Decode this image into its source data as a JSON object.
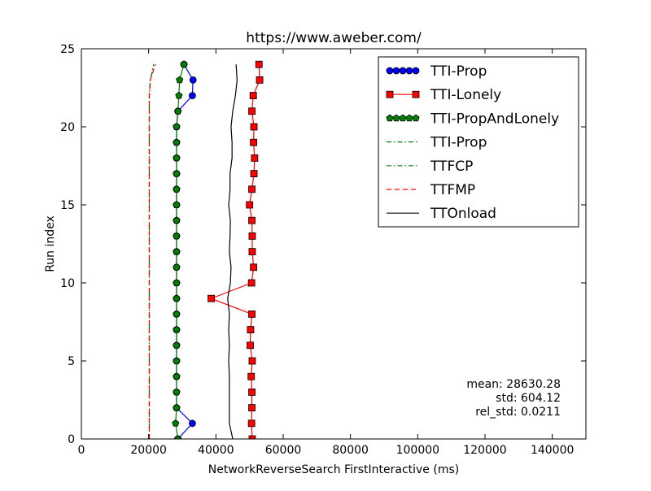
{
  "chart_data": {
    "type": "line",
    "title": "https://www.aweber.com/",
    "xlabel": "NetworkReverseSearch FirstInteractive (ms)",
    "ylabel": "Run index",
    "xlim": [
      0,
      150000
    ],
    "ylim": [
      0,
      25
    ],
    "x_ticks": [
      0,
      20000,
      40000,
      60000,
      80000,
      100000,
      120000,
      140000
    ],
    "y_ticks": [
      0,
      5,
      10,
      15,
      20,
      25
    ],
    "grid": false,
    "legend_position": "top-right",
    "annotation": {
      "lines": [
        "mean: 28630.28",
        "std: 604.12",
        "rel_std: 0.0211"
      ]
    },
    "series": [
      {
        "name": "TTI-Prop",
        "style": "solid-marker",
        "marker": "circle",
        "color": "#0000ff",
        "marker_fill": "#0000ff",
        "y": [
          0,
          1,
          2,
          3,
          4,
          5,
          6,
          7,
          8,
          9,
          10,
          11,
          12,
          13,
          14,
          15,
          16,
          17,
          18,
          19,
          20,
          21,
          22,
          23,
          24
        ],
        "x": [
          28700,
          33000,
          28300,
          28300,
          28300,
          28300,
          28300,
          28300,
          28300,
          28300,
          28300,
          28300,
          28300,
          28300,
          28300,
          28300,
          28300,
          28300,
          28300,
          28300,
          28300,
          28700,
          33000,
          33200,
          30500
        ]
      },
      {
        "name": "TTI-Lonely",
        "style": "solid-marker",
        "marker": "square",
        "color": "#ff0000",
        "marker_fill": "#ff0000",
        "y": [
          0,
          1,
          2,
          3,
          4,
          5,
          6,
          7,
          8,
          9,
          10,
          11,
          12,
          13,
          14,
          15,
          16,
          17,
          18,
          19,
          20,
          21,
          22,
          23,
          24
        ],
        "x": [
          50800,
          50600,
          50700,
          50700,
          50500,
          50800,
          50200,
          50300,
          50700,
          38600,
          50600,
          51200,
          50800,
          50800,
          50700,
          50000,
          50700,
          51300,
          51500,
          51200,
          51300,
          50700,
          51100,
          53000,
          52800
        ]
      },
      {
        "name": "TTI-PropAndLonely",
        "style": "solid-marker",
        "marker": "pentagon",
        "color": "#008000",
        "marker_fill": "#008000",
        "y": [
          0,
          1,
          2,
          3,
          4,
          5,
          6,
          7,
          8,
          9,
          10,
          11,
          12,
          13,
          14,
          15,
          16,
          17,
          18,
          19,
          20,
          21,
          22,
          23,
          24
        ],
        "x": [
          28700,
          28000,
          28300,
          28300,
          28300,
          28300,
          28300,
          28300,
          28300,
          28300,
          28300,
          28300,
          28300,
          28300,
          28300,
          28300,
          28300,
          28300,
          28300,
          28300,
          28300,
          28700,
          29000,
          29200,
          30500
        ]
      },
      {
        "name": "TTI-Prop",
        "style": "dashdot",
        "color": "#008000",
        "y": [
          0,
          1,
          2,
          3,
          4,
          5,
          6,
          7,
          8,
          9,
          10,
          11,
          12,
          13,
          14,
          15,
          16,
          17,
          18,
          19,
          20,
          21,
          22,
          23,
          24
        ],
        "x": [
          20200,
          20200,
          20200,
          20200,
          20200,
          20200,
          20200,
          20200,
          20200,
          20200,
          20200,
          20200,
          20200,
          20200,
          20200,
          20200,
          20200,
          20200,
          20200,
          20200,
          20200,
          20200,
          20200,
          20500,
          21500
        ]
      },
      {
        "name": "TTFCP",
        "style": "dashdot",
        "color": "#008000",
        "y": [
          0,
          1,
          2,
          3,
          4,
          5,
          6,
          7,
          8,
          9,
          10,
          11,
          12,
          13,
          14,
          15,
          16,
          17,
          18,
          19,
          20,
          21,
          22,
          23,
          24
        ],
        "x": [
          20200,
          20200,
          20200,
          20200,
          20200,
          20200,
          20200,
          20200,
          20200,
          20200,
          20200,
          20200,
          20200,
          20200,
          20200,
          20200,
          20200,
          20200,
          20200,
          20200,
          20200,
          20200,
          20200,
          20500,
          21500
        ]
      },
      {
        "name": "TTFMP",
        "style": "dashed",
        "color": "#ff0000",
        "y": [
          0,
          1,
          2,
          3,
          4,
          5,
          6,
          7,
          8,
          9,
          10,
          11,
          12,
          13,
          14,
          15,
          16,
          17,
          18,
          19,
          20,
          21,
          22,
          23,
          24
        ],
        "x": [
          20200,
          20200,
          20200,
          20200,
          20200,
          20200,
          20200,
          20200,
          20200,
          20200,
          20200,
          20200,
          20200,
          20200,
          20200,
          20200,
          20200,
          20200,
          20200,
          20200,
          20200,
          20200,
          20200,
          20500,
          22000
        ]
      },
      {
        "name": "TTOnload",
        "style": "solid",
        "color": "#000000",
        "y": [
          0,
          1,
          2,
          3,
          4,
          5,
          6,
          7,
          8,
          9,
          10,
          11,
          12,
          13,
          14,
          15,
          16,
          17,
          18,
          19,
          20,
          21,
          22,
          23,
          24
        ],
        "x": [
          45000,
          44000,
          44000,
          44000,
          44000,
          43800,
          44000,
          43800,
          44000,
          43500,
          44300,
          44500,
          44000,
          44200,
          44300,
          43800,
          44200,
          44200,
          44800,
          44800,
          44500,
          45000,
          45800,
          46300,
          46000
        ]
      }
    ]
  }
}
